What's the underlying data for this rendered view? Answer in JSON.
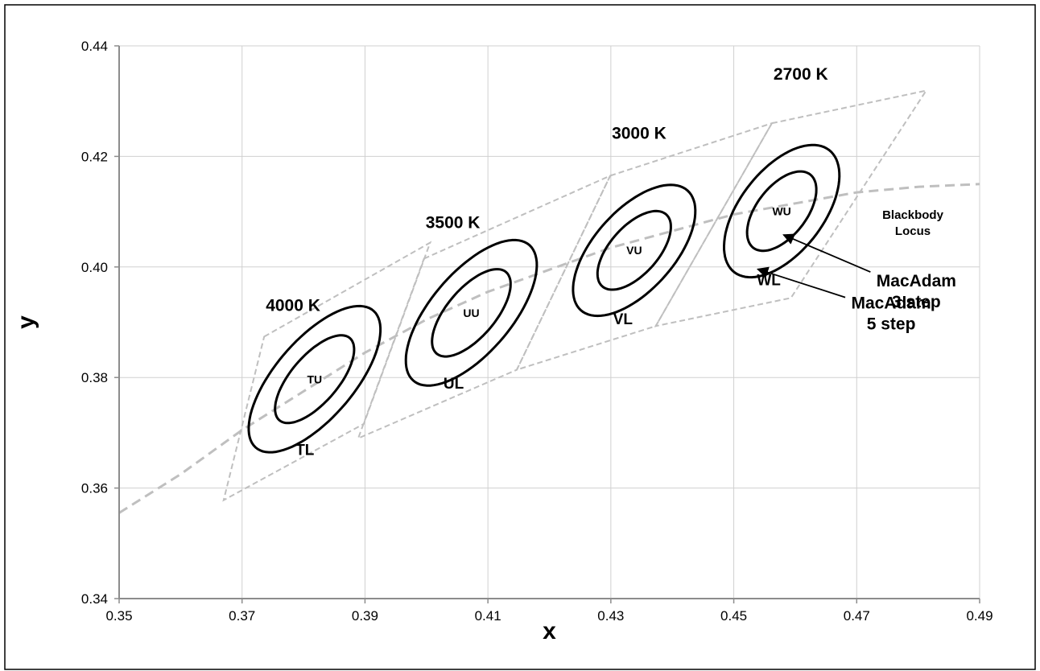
{
  "chart_data": {
    "type": "scatter",
    "title": "",
    "xlabel": "x",
    "ylabel": "y",
    "xlim": [
      0.35,
      0.49
    ],
    "ylim": [
      0.34,
      0.44
    ],
    "x_ticks": [
      0.35,
      0.37,
      0.39,
      0.41,
      0.43,
      0.45,
      0.47,
      0.49
    ],
    "y_ticks": [
      0.34,
      0.36,
      0.38,
      0.4,
      0.42,
      0.44
    ],
    "x_tick_labels": [
      "0.35",
      "0.37",
      "0.39",
      "0.41",
      "0.43",
      "0.45",
      "0.47",
      "0.49"
    ],
    "y_tick_labels": [
      "0.34",
      "0.36",
      "0.38",
      "0.40",
      "0.42",
      "0.44"
    ],
    "grid": true,
    "blackbody_locus": {
      "label": "Blackbody Locus",
      "points": [
        [
          0.35,
          0.3555
        ],
        [
          0.36,
          0.3625
        ],
        [
          0.37,
          0.3705
        ],
        [
          0.38,
          0.3775
        ],
        [
          0.39,
          0.3845
        ],
        [
          0.4,
          0.3905
        ],
        [
          0.41,
          0.3955
        ],
        [
          0.42,
          0.3995
        ],
        [
          0.43,
          0.4035
        ],
        [
          0.44,
          0.4065
        ],
        [
          0.45,
          0.4095
        ],
        [
          0.46,
          0.4115
        ],
        [
          0.47,
          0.4135
        ],
        [
          0.48,
          0.4145
        ],
        [
          0.49,
          0.415
        ]
      ]
    },
    "quadrangles": [
      {
        "cct": "4000 K",
        "corners": [
          [
            0.3736,
            0.3874
          ],
          [
            0.4006,
            0.4044
          ],
          [
            0.3898,
            0.3716
          ],
          [
            0.367,
            0.3578
          ]
        ]
      },
      {
        "cct": "3500 K",
        "corners": [
          [
            0.3996,
            0.4015
          ],
          [
            0.4299,
            0.4165
          ],
          [
            0.4147,
            0.3814
          ],
          [
            0.3889,
            0.369
          ]
        ]
      },
      {
        "cct": "3000 K",
        "corners": [
          [
            0.4299,
            0.4165
          ],
          [
            0.4562,
            0.426
          ],
          [
            0.4373,
            0.3893
          ],
          [
            0.4147,
            0.3814
          ]
        ]
      },
      {
        "cct": "2700 K",
        "corners": [
          [
            0.4562,
            0.426
          ],
          [
            0.4813,
            0.4319
          ],
          [
            0.4593,
            0.3944
          ],
          [
            0.4373,
            0.3893
          ]
        ]
      }
    ],
    "series": [
      {
        "group": "4000 K",
        "center_label": "TU",
        "bottom_label": "TL",
        "center": [
          0.3818,
          0.3797
        ],
        "ellipse_3_step": {
          "a": 0.0094,
          "b": 0.004,
          "angle_deg": 53.7
        },
        "ellipse_5_step": {
          "a": 0.01567,
          "b": 0.00667,
          "angle_deg": 53.7
        }
      },
      {
        "group": "3500 K",
        "center_label": "UU",
        "bottom_label": "UL",
        "center": [
          0.4073,
          0.3917
        ],
        "ellipse_3_step": {
          "a": 0.0093,
          "b": 0.0041,
          "angle_deg": 54.0
        },
        "ellipse_5_step": {
          "a": 0.0155,
          "b": 0.00683,
          "angle_deg": 54.0
        }
      },
      {
        "group": "3000 K",
        "center_label": "VU",
        "bottom_label": "VL",
        "center": [
          0.4338,
          0.403
        ],
        "ellipse_3_step": {
          "a": 0.00834,
          "b": 0.00408,
          "angle_deg": 53.2
        },
        "ellipse_5_step": {
          "a": 0.0139,
          "b": 0.0068,
          "angle_deg": 53.2
        }
      },
      {
        "group": "2700 K",
        "center_label": "WU",
        "bottom_label": "WL",
        "center": [
          0.4578,
          0.4101
        ],
        "ellipse_3_step": {
          "a": 0.0081,
          "b": 0.0042,
          "angle_deg": 57.2
        },
        "ellipse_5_step": {
          "a": 0.0135,
          "b": 0.007,
          "angle_deg": 57.2
        }
      }
    ],
    "annotations": [
      {
        "id": "macadam3",
        "line1": "MacAdam",
        "line2": "3 step",
        "text_at": [
          0.4725,
          0.3985
        ],
        "arrow_to": [
          0.4581,
          0.4058
        ]
      },
      {
        "id": "macadam5",
        "line1": "MacAdam",
        "line2": "5 step",
        "text_at": [
          0.4684,
          0.3945
        ],
        "arrow_to": [
          0.4539,
          0.3996
        ]
      }
    ],
    "colors": {
      "ellipse": "#000000",
      "quadrangle": "#bfbfbf",
      "locus": "#bfbfbf",
      "grid": "#d0d0d0",
      "axis": "#8c8c8c"
    }
  }
}
